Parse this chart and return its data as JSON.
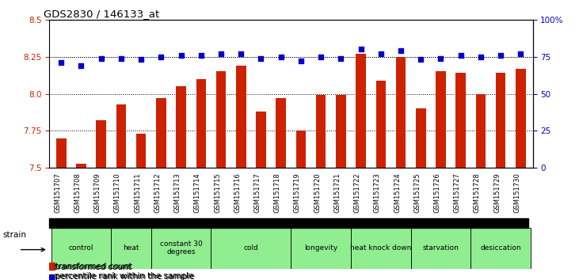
{
  "title": "GDS2830 / 146133_at",
  "samples": [
    "GSM151707",
    "GSM151708",
    "GSM151709",
    "GSM151710",
    "GSM151711",
    "GSM151712",
    "GSM151713",
    "GSM151714",
    "GSM151715",
    "GSM151716",
    "GSM151717",
    "GSM151718",
    "GSM151719",
    "GSM151720",
    "GSM151721",
    "GSM151722",
    "GSM151723",
    "GSM151724",
    "GSM151725",
    "GSM151726",
    "GSM151727",
    "GSM151728",
    "GSM151729",
    "GSM151730"
  ],
  "bar_values": [
    7.7,
    7.53,
    7.82,
    7.93,
    7.73,
    7.97,
    8.05,
    8.1,
    8.15,
    8.19,
    7.88,
    7.97,
    7.75,
    7.99,
    7.99,
    8.27,
    8.09,
    8.25,
    7.9,
    8.15,
    8.14,
    8.0,
    8.14,
    8.17
  ],
  "percentile_values": [
    71,
    69,
    74,
    74,
    73,
    75,
    76,
    76,
    77,
    77,
    74,
    75,
    72,
    75,
    74,
    80,
    77,
    79,
    73,
    74,
    76,
    75,
    76,
    77
  ],
  "ylim_left": [
    7.5,
    8.5
  ],
  "ylim_right": [
    0,
    100
  ],
  "yticks_left": [
    7.5,
    7.75,
    8.0,
    8.25,
    8.5
  ],
  "yticks_right": [
    0,
    25,
    50,
    75,
    100
  ],
  "ytick_labels_right": [
    "0",
    "25",
    "50",
    "75",
    "100%"
  ],
  "bar_color": "#cc2200",
  "dot_color": "#0000cc",
  "groups": [
    {
      "label": "control",
      "start": 0,
      "end": 2
    },
    {
      "label": "heat",
      "start": 3,
      "end": 4
    },
    {
      "label": "constant 30\ndegrees",
      "start": 5,
      "end": 7
    },
    {
      "label": "cold",
      "start": 8,
      "end": 11
    },
    {
      "label": "longevity",
      "start": 12,
      "end": 14
    },
    {
      "label": "heat knock down",
      "start": 15,
      "end": 17
    },
    {
      "label": "starvation",
      "start": 18,
      "end": 20
    },
    {
      "label": "desiccation",
      "start": 21,
      "end": 23
    }
  ],
  "group_color": "#90ee90",
  "legend_bar_label": "transformed count",
  "legend_dot_label": "percentile rank within the sample",
  "strain_label": "strain",
  "tick_color_left": "#cc2200",
  "tick_color_right": "#0000cc"
}
